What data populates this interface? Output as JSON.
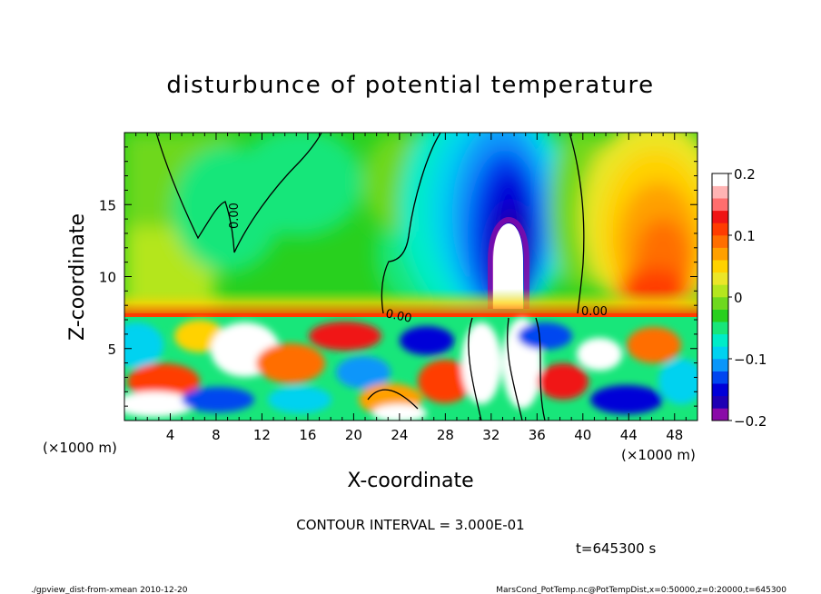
{
  "chart_data": {
    "type": "heatmap",
    "title": "disturbunce of potential temperature",
    "xlabel": "X-coordinate",
    "ylabel": "Z-coordinate",
    "x_unit": "(×1000 m)",
    "z_unit": "(×1000 m)",
    "xlim": [
      0,
      50
    ],
    "zlim": [
      0,
      20
    ],
    "x_ticks": [
      "4",
      "8",
      "12",
      "16",
      "20",
      "24",
      "28",
      "32",
      "36",
      "40",
      "44",
      "48"
    ],
    "z_ticks": [
      "5",
      "10",
      "15"
    ],
    "colorbar": {
      "range": [
        -0.2,
        0.2
      ],
      "tick_labels": [
        "0.2",
        "0.1",
        "0",
        "−0.1",
        "−0.2"
      ],
      "colors": [
        "#8a0aa8",
        "#1e00b4",
        "#0000d8",
        "#0046f0",
        "#0a96fa",
        "#00d2f0",
        "#00ecc8",
        "#18e67a",
        "#28d01e",
        "#6ed81e",
        "#b4e61e",
        "#ebe628",
        "#ffd200",
        "#ffa000",
        "#ff6e00",
        "#ff3c00",
        "#f01414",
        "#ff6e6e",
        "#ffb4b4",
        "#ffffff"
      ]
    },
    "contour_label": "0.00",
    "contour_interval_text": "CONTOUR INTERVAL = 3.000E-01",
    "time_text": "t=645300 s",
    "description_regions": [
      {
        "x": [
          0,
          50
        ],
        "z": [
          7.5,
          20
        ],
        "value": 0.0
      },
      {
        "x": [
          32,
          35.5
        ],
        "z": [
          9,
          14
        ],
        "value": -0.25
      },
      {
        "x": [
          43,
          50
        ],
        "z": [
          8,
          18
        ],
        "value": 0.1
      },
      {
        "x": [
          0,
          50
        ],
        "z": [
          0,
          7.5
        ],
        "value": "mixed"
      }
    ]
  },
  "footer": {
    "left": "./gpview_dist-from-xmean  2010-12-20",
    "right": "MarsCond_PotTemp.nc@PotTempDist,x=0:50000,z=0:20000,t=645300"
  }
}
